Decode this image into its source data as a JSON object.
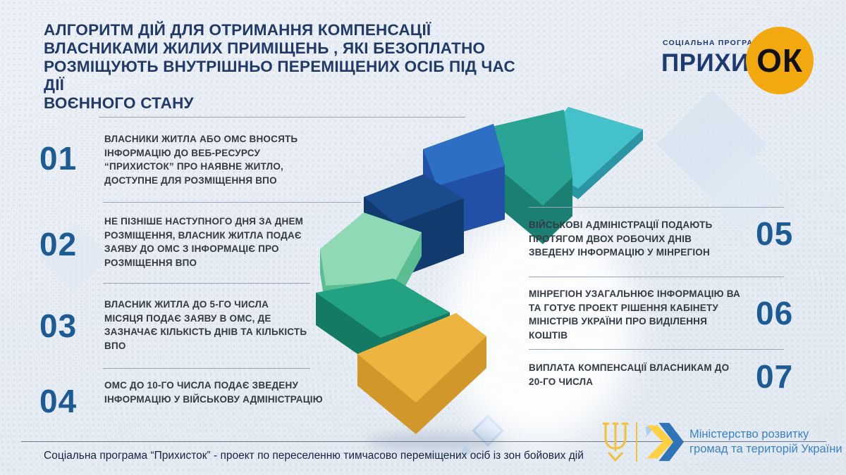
{
  "title": {
    "lines": [
      "АЛГОРИТМ ДІЙ ДЛЯ ОТРИМАННЯ КОМПЕНСАЦІЇ",
      "ВЛАСНИКАМИ ЖИЛИХ ПРИМІЩЕНЬ , ЯКІ БЕЗОПЛАТНО",
      "РОЗМІЩУЮТЬ ВНУТРІШНЬО ПЕРЕМІЩЕНИХ ОСІБ ПІД ЧАС ДІЇ",
      "ВОЄННОГО СТАНУ"
    ],
    "color": "#213a67"
  },
  "program_logo": {
    "tagline": "СОЦІАЛЬНА ПРОГРАМА",
    "name_part": "ПРИХИСТ",
    "name_circle": "ОК",
    "circle_color": "#F2A90F",
    "text_color": "#1e3a6e"
  },
  "steps_left": [
    {
      "num": "01",
      "text": "ВЛАСНИКИ ЖИТЛА АБО ОМС ВНОСЯТЬ ІНФОРМАЦІЮ ДО ВЕБ-РЕСУРСУ “ПРИХИСТОК” ПРО НАЯВНЕ ЖИТЛО, ДОСТУПНЕ ДЛЯ РОЗМІЩЕННЯ ВПО"
    },
    {
      "num": "02",
      "text": "НЕ ПІЗНІШЕ НАСТУПНОГО ДНЯ ЗА ДНЕМ РОЗМІЩЕННЯ, ВЛАСНИК ЖИТЛА ПОДАЄ ЗАЯВУ ДО ОМС З ІНФОРМАЦІЄ ПРО РОЗМІЩЕННЯ ВПО"
    },
    {
      "num": "03",
      "text": "ВЛАСНИК ЖИТЛА ДО 5-ГО ЧИСЛА МІСЯЦЯ ПОДАЄ ЗАЯВУ В ОМС, ДЕ ЗАЗНАЧАЄ КІЛЬКІСТЬ ДНІВ ТА КІЛЬКІСТЬ ВПО"
    },
    {
      "num": "04",
      "text": "ОМС ДО 10-ГО ЧИСЛА ПОДАЄ ЗВЕДЕНУ ІНФОРМАЦІЮ У ВІЙСЬКОВУ АДМІНІСТРАЦІЮ"
    }
  ],
  "steps_right": [
    {
      "num": "05",
      "text": "ВІЙСЬКОВІ АДМІНІСТРАЦІЇ ПОДАЮТЬ ПРОТЯГОМ ДВОХ РОБОЧИХ ДНІВ ЗВЕДЕНУ ІНФОРМАЦІЮ У МІНРЕГІОН"
    },
    {
      "num": "06",
      "text": "МІНРЕГІОН УЗАГАЛЬНЮЄ ІНФОРМАЦІЮ ВА ТА ГОТУЄ ПРОЕКТ РІШЕННЯ КАБІНЕТУ МІНІСТРІВ УКРАЇНИ ПРО ВИДІЛЕННЯ КОШТІВ"
    },
    {
      "num": "07",
      "text": "ВИПЛАТА КОМПЕНСАЦІЇ ВЛАСНИКАМ ДО 20-ГО ЧИСЛА"
    }
  ],
  "number_color": "#1d5b95",
  "stairs": {
    "steps": [
      {
        "label": "step-1-cyan",
        "top": "#44C1CB",
        "side": "#2C95A3"
      },
      {
        "label": "step-2-teal",
        "top": "#2AA495",
        "side": "#1C7F73"
      },
      {
        "label": "step-3-blue",
        "top": "#2D6FC4",
        "side": "#2150A6"
      },
      {
        "label": "step-4-navy",
        "top": "#1A4B8C",
        "side": "#113A6F"
      },
      {
        "label": "step-5-mint",
        "top": "#8FD9B5",
        "side": "#5BBD92"
      },
      {
        "label": "step-6-green",
        "top": "#22A183",
        "side": "#157A64"
      },
      {
        "label": "step-7-yellow",
        "top": "#EDB440",
        "side": "#D1972A"
      }
    ]
  },
  "footer": {
    "note": "Соціальна програма “Прихисток” - проект по переселенню тимчасово переміщених осіб із зон бойових дій"
  },
  "ministry": {
    "line1": "Міністерство розвитку",
    "line2": "громад та територій України",
    "text_color": "#3b82c4"
  }
}
